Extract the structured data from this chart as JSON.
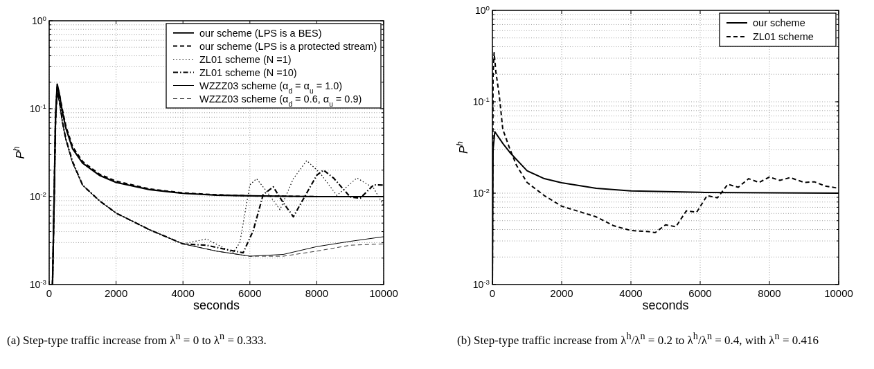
{
  "chart_data": [
    {
      "type": "line",
      "xlabel": "seconds",
      "ylabel": "P$^{h}$",
      "log": "y",
      "grid": true,
      "legend": "top right",
      "xlim": [
        0,
        10000
      ],
      "xticks": [
        0,
        2000,
        4000,
        6000,
        8000,
        10000
      ],
      "ylim": [
        0.001,
        1
      ],
      "yticks": [
        {
          "value": 0.001,
          "label": "10$^{-3}$"
        },
        {
          "value": 0.01,
          "label": "10$^{-2}$"
        },
        {
          "value": 0.1,
          "label": "10$^{-1}$"
        },
        {
          "value": 1,
          "label": "10$^{0}$"
        }
      ],
      "annotations": [
        "(a)  Step-type traffic increase from λ$^{n}$ = 0 to λ$^{n}$ = 0.333."
      ],
      "series": [
        {
          "name": "our scheme (LPS is a BES)",
          "color": "#000000",
          "line_style": "solid",
          "x": [
            100,
            150,
            190,
            240,
            300,
            400,
            500,
            700,
            1000,
            1500,
            2000,
            3000,
            4000,
            5000,
            6000,
            8000,
            10000
          ],
          "values": [
            0.001,
            0.01,
            0.08,
            0.19,
            0.15,
            0.09,
            0.06,
            0.035,
            0.024,
            0.0175,
            0.0145,
            0.012,
            0.0109,
            0.0104,
            0.0102,
            0.01,
            0.01
          ]
        },
        {
          "name": "our scheme (LPS is a protected stream)",
          "color": "#000000",
          "line_style": "dashed",
          "x": [
            100,
            150,
            190,
            240,
            300,
            400,
            500,
            700,
            1000,
            1500,
            2000,
            3000,
            4000,
            5000,
            6000,
            8000,
            10000
          ],
          "values": [
            0.001,
            0.01,
            0.07,
            0.18,
            0.15,
            0.095,
            0.063,
            0.037,
            0.025,
            0.018,
            0.015,
            0.0122,
            0.011,
            0.0105,
            0.0102,
            0.01,
            0.01
          ]
        },
        {
          "name": "ZL01 scheme (N =1)",
          "color": "#000000",
          "line_style": "dotted",
          "x": [
            100,
            150,
            190,
            240,
            300,
            400,
            500,
            700,
            1000,
            1500,
            2000,
            3000,
            4000,
            4700,
            5500,
            5700,
            6000,
            6200,
            6500,
            6900,
            7300,
            7700,
            8100,
            8600,
            9200,
            9700,
            10000
          ],
          "values": [
            0.001,
            0.01,
            0.08,
            0.17,
            0.13,
            0.07,
            0.045,
            0.025,
            0.0135,
            0.009,
            0.0065,
            0.0042,
            0.0029,
            0.0033,
            0.0023,
            0.003,
            0.0136,
            0.016,
            0.0115,
            0.0071,
            0.016,
            0.0257,
            0.0185,
            0.0103,
            0.0163,
            0.0125,
            0.0079
          ]
        },
        {
          "name": "ZL01 scheme (N =10)",
          "color": "#000000",
          "line_style": "dashdot",
          "x": [
            100,
            150,
            190,
            240,
            300,
            400,
            500,
            700,
            1000,
            1500,
            2000,
            3000,
            4000,
            4700,
            5300,
            5800,
            6100,
            6400,
            6700,
            7000,
            7300,
            7700,
            8000,
            8200,
            8500,
            9000,
            9300,
            9700,
            10000
          ],
          "values": [
            0.001,
            0.01,
            0.08,
            0.17,
            0.13,
            0.07,
            0.045,
            0.025,
            0.0135,
            0.009,
            0.0065,
            0.0042,
            0.0029,
            0.0028,
            0.0025,
            0.0023,
            0.0041,
            0.0106,
            0.0129,
            0.0085,
            0.0059,
            0.011,
            0.0175,
            0.02,
            0.0163,
            0.0099,
            0.0096,
            0.0136,
            0.0135
          ]
        },
        {
          "name": "WZZZ03 scheme (α$_{d}$ = α$_{u}$ = 1.0)",
          "color": "#000000",
          "line_style": "solid",
          "x": [
            100,
            150,
            190,
            240,
            300,
            400,
            500,
            700,
            1000,
            1500,
            2000,
            3000,
            4000,
            5000,
            6000,
            7000,
            8000,
            9000,
            10000
          ],
          "values": [
            0.001,
            0.01,
            0.07,
            0.15,
            0.12,
            0.068,
            0.044,
            0.024,
            0.0135,
            0.009,
            0.0065,
            0.0042,
            0.0029,
            0.0024,
            0.0021,
            0.0022,
            0.0027,
            0.0031,
            0.0035
          ]
        },
        {
          "name": "WZZZ03 scheme (α$_{d}$ = 0.6, α$_{u}$ = 0.9)",
          "color": "#000000",
          "line_style": "dashed",
          "x": [
            100,
            150,
            190,
            240,
            300,
            400,
            500,
            700,
            1000,
            1500,
            2000,
            3000,
            4000,
            5000,
            6000,
            7000,
            8000,
            9000,
            10000
          ],
          "values": [
            0.001,
            0.01,
            0.07,
            0.15,
            0.12,
            0.068,
            0.044,
            0.024,
            0.0135,
            0.009,
            0.0065,
            0.0042,
            0.0029,
            0.0024,
            0.0021,
            0.0021,
            0.0024,
            0.0028,
            0.0029
          ]
        }
      ]
    },
    {
      "type": "line",
      "xlabel": "seconds",
      "ylabel": "P$^{h}$",
      "log": "y",
      "grid": true,
      "legend": "top right",
      "xlim": [
        0,
        10000
      ],
      "xticks": [
        0,
        2000,
        4000,
        6000,
        8000,
        10000
      ],
      "ylim": [
        0.001,
        1
      ],
      "yticks": [
        {
          "value": 0.001,
          "label": "10$^{-3}$"
        },
        {
          "value": 0.01,
          "label": "10$^{-2}$"
        },
        {
          "value": 0.1,
          "label": "10$^{-1}$"
        },
        {
          "value": 1,
          "label": "10$^{0}$"
        }
      ],
      "annotations": [
        "(b)  Step-type traffic increase from λ$^{h}$/λ$^{n}$ = 0.2 to λ$^{h}$/λ$^{n}$ = 0.4, with λ$^{n}$ = 0.416"
      ],
      "series": [
        {
          "name": "our scheme",
          "color": "#000000",
          "line_style": "solid",
          "x": [
            0,
            20,
            70,
            300,
            500,
            1000,
            1500,
            2000,
            3000,
            4000,
            6000,
            10000
          ],
          "values": [
            0.001,
            0.03,
            0.047,
            0.035,
            0.028,
            0.0176,
            0.0144,
            0.013,
            0.0113,
            0.0106,
            0.0102,
            0.01
          ]
        },
        {
          "name": "ZL01 scheme",
          "color": "#000000",
          "line_style": "dashed",
          "x": [
            0,
            20,
            50,
            100,
            200,
            300,
            500,
            700,
            1000,
            1500,
            2000,
            2500,
            3000,
            3500,
            4000,
            4500,
            4700,
            5000,
            5300,
            5600,
            5900,
            6200,
            6500,
            6800,
            7100,
            7400,
            7700,
            8000,
            8300,
            8600,
            9000,
            9300,
            9600,
            10000
          ],
          "values": [
            0.001,
            0.2,
            0.345,
            0.213,
            0.116,
            0.05,
            0.0307,
            0.02,
            0.0131,
            0.0094,
            0.0072,
            0.0063,
            0.0055,
            0.0044,
            0.0039,
            0.0038,
            0.0037,
            0.0045,
            0.0043,
            0.0064,
            0.0062,
            0.0094,
            0.0089,
            0.0125,
            0.0116,
            0.0144,
            0.0131,
            0.015,
            0.0138,
            0.0148,
            0.0131,
            0.0133,
            0.012,
            0.0113
          ]
        }
      ]
    }
  ]
}
